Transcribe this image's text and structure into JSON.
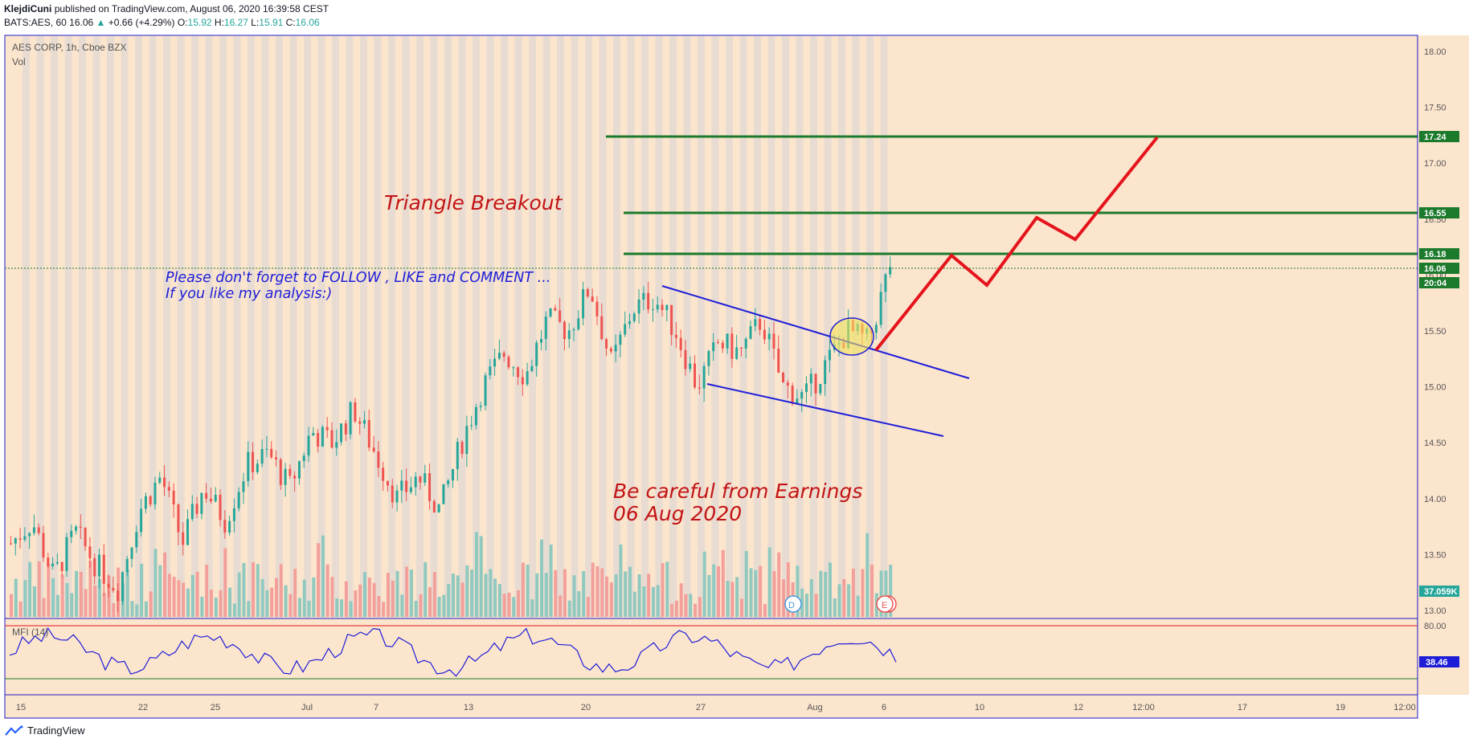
{
  "header": {
    "author": "KlejdiCuni",
    "published": "published on TradingView.com, August 06, 2020 16:39:58 CEST",
    "symbol": "BATS:AES, 60",
    "last": "16.06",
    "change": "+0.66 (+4.29%)",
    "o": "15.92",
    "h": "16.27",
    "l": "15.91",
    "c": "16.06"
  },
  "pane": {
    "title": "AES CORP, 1h, Cboe BZX",
    "vol_label": "Vol",
    "mfi_label": "MFI (14)"
  },
  "annotations": {
    "triangle": "Triangle Breakout",
    "follow1": "Please don't forget  to FOLLOW , LIKE and COMMENT ...",
    "follow2": "If you like my analysis:)",
    "earn1": "Be careful from Earnings",
    "earn2": "06 Aug 2020"
  },
  "price_axis": {
    "ticks": [
      "18.00",
      "17.50",
      "17.00",
      "16.50",
      "16.00",
      "15.50",
      "15.00",
      "14.50",
      "14.00",
      "13.50",
      "13.00"
    ],
    "labels": [
      {
        "text": "17.24",
        "color": "#1b7a2c"
      },
      {
        "text": "16.55",
        "color": "#1b7a2c"
      },
      {
        "text": "16.18",
        "color": "#1b7a2c"
      },
      {
        "text": "16.06",
        "color": "#1b7a2c"
      },
      {
        "text": "20:04",
        "color": "#1b7a2c"
      },
      {
        "text": "37.059K",
        "color": "#26a69a"
      }
    ]
  },
  "mfi_axis": {
    "ticks": [
      "80.00"
    ],
    "value": "38.46"
  },
  "time_axis": [
    "15",
    "22",
    "25",
    "Jul",
    "7",
    "13",
    "20",
    "27",
    "Aug",
    "6",
    "10",
    "12",
    "12:00",
    "17",
    "19",
    "12:00"
  ],
  "events": {
    "dividend": "D",
    "earnings": "E"
  },
  "footer": {
    "brand": "TradingView"
  },
  "chart_data": {
    "type": "candlestick",
    "title": "AES CORP, 1h, Cboe BZX",
    "ylim": [
      12.95,
      18.1
    ],
    "levels": [
      17.24,
      16.55,
      16.18
    ],
    "last_price": 16.06,
    "trajectory": [
      [
        15.3,
        "Aug 6"
      ],
      [
        16.18,
        ""
      ],
      [
        15.9,
        ""
      ],
      [
        16.5,
        ""
      ],
      [
        16.3,
        ""
      ],
      [
        17.24,
        ""
      ]
    ],
    "approx_close_path": [
      13.6,
      13.8,
      13.3,
      13.7,
      13.4,
      13.2,
      13.9,
      14.2,
      13.6,
      14.1,
      13.8,
      14.3,
      14.4,
      14.1,
      14.6,
      14.5,
      14.8,
      14.4,
      14.0,
      14.2,
      13.9,
      14.5,
      15.0,
      15.3,
      15.1,
      15.6,
      15.5,
      15.9,
      15.2,
      15.7,
      15.8,
      15.5,
      15.0,
      15.4,
      15.3,
      15.6,
      15.0,
      14.9,
      15.2,
      15.5,
      15.4,
      16.1
    ],
    "colors": {
      "up": "#26a69a",
      "down": "#ef5350",
      "level": "#1b7a2c",
      "trajectory": "#e5141c",
      "channel": "#1d1dd8",
      "text_red": "#c21416",
      "text_blue": "#1d1dd8"
    }
  }
}
